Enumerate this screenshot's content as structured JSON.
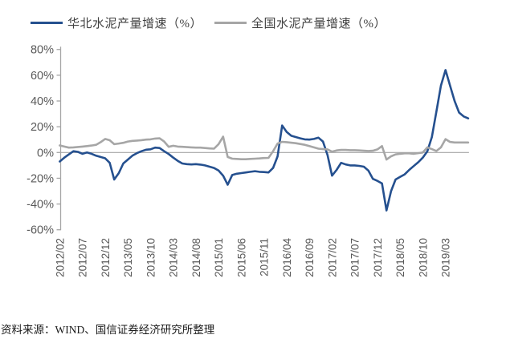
{
  "source_note": "资料来源：WIND、国信证券经济研究所整理",
  "colors": {
    "north_china_line": "#25508F",
    "national_line": "#A6A6A6",
    "axis_line": "#A6A6A6",
    "zero_line": "#A6A6A6",
    "tick_text": "#595959",
    "legend_text": "#404040",
    "source_text": "#1a1a1a"
  },
  "chart_data": {
    "type": "line",
    "title": "",
    "xlabel": "",
    "ylabel": "",
    "grid": false,
    "legend_position": "top",
    "ylim": [
      -60,
      80
    ],
    "y_tick_values": [
      80,
      60,
      40,
      20,
      0,
      -20,
      -40,
      -60
    ],
    "y_tick_labels": [
      "80%",
      "60%",
      "40%",
      "20%",
      "0%",
      "-20%",
      "-40%",
      "-60%"
    ],
    "x_tick_interval_points": 5,
    "x_tick_labels": [
      "2012/02",
      "2012/07",
      "2012/12",
      "2013/05",
      "2013/10",
      "2014/03",
      "2014/08",
      "2015/01",
      "2015/06",
      "2015/11",
      "2016/04",
      "2016/09",
      "2017/02",
      "2017/07",
      "2017/12",
      "2018/05",
      "2018/10",
      "2019/03"
    ],
    "x_start": "2012/02",
    "x_end": "2019/08",
    "x_frequency": "monthly",
    "series": [
      {
        "name": "华北水泥产量增速（%）",
        "color": "#25508F",
        "values": [
          -7,
          -4,
          -1.5,
          1,
          0.5,
          -1,
          0,
          -1,
          -2.5,
          -3.5,
          -4.5,
          -8,
          -21,
          -16,
          -8.5,
          -5.5,
          -2.5,
          -0.5,
          1,
          2.2,
          2.5,
          3.8,
          3.5,
          1,
          -1.2,
          -4,
          -6.5,
          -8.5,
          -9,
          -9.3,
          -9,
          -9.4,
          -10,
          -11,
          -12,
          -14,
          -18,
          -25,
          -17.5,
          -16.5,
          -16,
          -15.5,
          -15,
          -14.5,
          -15,
          -15.2,
          -15.5,
          -12,
          -3,
          21,
          16,
          13,
          12,
          11,
          10.2,
          10,
          10.5,
          11.5,
          8.5,
          -2,
          -18,
          -13.5,
          -8,
          -9.3,
          -10,
          -10,
          -10.4,
          -11,
          -14,
          -20.5,
          -22,
          -24,
          -45,
          -30,
          -21,
          -19,
          -17,
          -13.5,
          -10.5,
          -7.5,
          -4,
          1,
          12,
          32,
          52,
          64,
          52,
          40,
          31,
          28,
          26.5
        ]
      },
      {
        "name": "全国水泥产量增速（%）",
        "color": "#A6A6A6",
        "values": [
          5.5,
          4.6,
          3.8,
          4,
          4.3,
          4.6,
          5,
          5.4,
          6,
          8,
          10.5,
          9.5,
          6.5,
          7,
          7.5,
          8.5,
          9,
          9.3,
          9.6,
          10,
          10.2,
          10.8,
          11,
          8.5,
          4.4,
          5.2,
          4.6,
          4.4,
          4.2,
          4,
          3.8,
          3.8,
          3.5,
          3.2,
          3,
          6.5,
          12.3,
          -3.5,
          -4.8,
          -5,
          -5.2,
          -5.2,
          -5,
          -4.8,
          -4.6,
          -4.3,
          -4.2,
          1,
          7,
          8.3,
          8,
          7.6,
          7.2,
          6.6,
          6,
          5,
          4,
          3,
          2.6,
          2.4,
          0.6,
          1.6,
          2,
          2,
          1.8,
          1.8,
          1.6,
          1.4,
          1.2,
          1.4,
          2.4,
          5,
          -5.5,
          -3,
          -1.5,
          -1,
          -0.6,
          -0.6,
          -1,
          -0.5,
          0,
          4,
          2.6,
          1.2,
          4,
          10.4,
          8.2,
          7.8,
          7.8,
          7.8,
          7.8
        ]
      }
    ]
  }
}
